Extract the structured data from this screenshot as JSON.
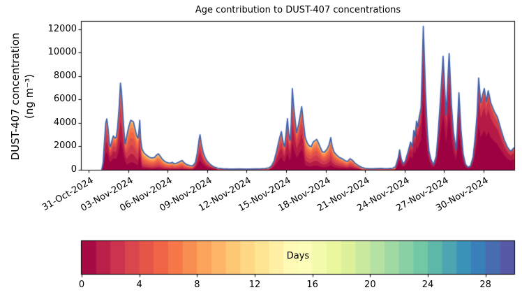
{
  "chart_data": {
    "type": "area",
    "title": "Age contribution to DUST-407 concentrations",
    "ylabel_line1": "DUST-407 concentration",
    "ylabel_line2": "(ng m⁻³)",
    "background_color": "#ffffff",
    "axis_color": "#000000",
    "line_color": "#4062aa",
    "ylim": [
      0,
      12650
    ],
    "xlim_days": [
      -0.53,
      32.33
    ],
    "y_ticks": [
      0,
      2000,
      4000,
      6000,
      8000,
      10000,
      12000
    ],
    "x_tick_labels": [
      "31-Oct-2024",
      "03-Nov-2024",
      "06-Nov-2024",
      "09-Nov-2024",
      "12-Nov-2024",
      "15-Nov-2024",
      "18-Nov-2024",
      "21-Nov-2024",
      "24-Nov-2024",
      "27-Nov-2024",
      "30-Nov-2024"
    ],
    "x_tick_days": [
      0,
      3,
      6,
      9,
      12,
      15,
      18,
      21,
      24,
      27,
      30
    ],
    "grid": false,
    "x_days": [
      1.0,
      1.1,
      1.2,
      1.3,
      1.38,
      1.48,
      1.58,
      1.66,
      1.78,
      1.88,
      2.0,
      2.1,
      2.2,
      2.32,
      2.42,
      2.5,
      2.6,
      2.7,
      2.78,
      2.9,
      3.05,
      3.2,
      3.4,
      3.55,
      3.65,
      3.75,
      3.82,
      3.88,
      3.95,
      4.05,
      4.2,
      4.4,
      4.6,
      4.8,
      5.0,
      5.15,
      5.3,
      5.45,
      5.6,
      5.8,
      6.0,
      6.2,
      6.35,
      6.5,
      6.7,
      6.9,
      7.1,
      7.3,
      7.5,
      7.7,
      7.9,
      8.1,
      8.25,
      8.38,
      8.46,
      8.55,
      8.7,
      8.85,
      9.0,
      9.2,
      9.4,
      9.6,
      9.8,
      10.2,
      10.6,
      11.0,
      11.4,
      11.8,
      12.2,
      12.6,
      13.0,
      13.4,
      13.7,
      13.9,
      14.1,
      14.3,
      14.5,
      14.64,
      14.78,
      14.88,
      15.0,
      15.1,
      15.2,
      15.3,
      15.38,
      15.47,
      15.56,
      15.68,
      15.79,
      15.95,
      16.08,
      16.18,
      16.3,
      16.45,
      16.6,
      16.75,
      16.9,
      17.05,
      17.2,
      17.32,
      17.45,
      17.6,
      17.75,
      17.9,
      18.1,
      18.25,
      18.39,
      18.5,
      18.65,
      18.85,
      19.05,
      19.25,
      19.45,
      19.65,
      19.85,
      20.05,
      20.25,
      20.5,
      20.75,
      21.0,
      21.3,
      21.6,
      21.9,
      22.2,
      22.5,
      22.8,
      23.1,
      23.3,
      23.5,
      23.62,
      23.75,
      23.9,
      24.05,
      24.25,
      24.45,
      24.58,
      24.7,
      24.8,
      24.9,
      25.0,
      25.1,
      25.25,
      25.42,
      25.58,
      25.72,
      25.85,
      26.0,
      26.2,
      26.4,
      26.55,
      26.72,
      26.92,
      27.15,
      27.38,
      27.55,
      27.7,
      27.9,
      28.0,
      28.12,
      28.28,
      28.45,
      28.62,
      28.8,
      29.0,
      29.2,
      29.35,
      29.5,
      29.62,
      29.78,
      29.92,
      30.05,
      30.2,
      30.35,
      30.55,
      30.8,
      31.05,
      31.3,
      31.55,
      31.8,
      32.05,
      32.3
    ],
    "total": [
      30,
      600,
      2400,
      4000,
      4350,
      3500,
      2200,
      1970,
      2550,
      2900,
      2700,
      2800,
      3600,
      5400,
      7400,
      6600,
      4700,
      3100,
      2200,
      2900,
      3700,
      4230,
      4100,
      3400,
      2900,
      2700,
      3300,
      4230,
      2600,
      1800,
      1450,
      1250,
      1080,
      1000,
      1050,
      1250,
      1370,
      1150,
      900,
      700,
      600,
      560,
      640,
      520,
      580,
      680,
      800,
      560,
      420,
      360,
      340,
      600,
      1400,
      2500,
      2985,
      2300,
      1500,
      1050,
      750,
      500,
      330,
      210,
      140,
      95,
      75,
      70,
      80,
      65,
      70,
      75,
      85,
      110,
      170,
      350,
      800,
      1700,
      2700,
      3265,
      2300,
      1970,
      3200,
      4360,
      3000,
      2500,
      3800,
      6940,
      5600,
      4300,
      3164,
      3900,
      4700,
      5390,
      4200,
      2764,
      2300,
      2050,
      1970,
      2370,
      2500,
      2600,
      2300,
      1900,
      1550,
      1500,
      1750,
      2100,
      2750,
      2000,
      1500,
      1250,
      1050,
      950,
      800,
      700,
      950,
      800,
      550,
      350,
      200,
      130,
      95,
      90,
      110,
      130,
      95,
      105,
      140,
      250,
      950,
      1700,
      900,
      480,
      750,
      1500,
      2370,
      1950,
      3360,
      2850,
      4160,
      3650,
      4460,
      5300,
      12250,
      6800,
      3300,
      1600,
      880,
      420,
      1200,
      3200,
      6000,
      9700,
      4650,
      9930,
      5600,
      3300,
      1700,
      3400,
      6590,
      3400,
      1300,
      480,
      220,
      320,
      1100,
      2700,
      4700,
      7840,
      5700,
      6400,
      6940,
      5800,
      6750,
      5700,
      5000,
      4500,
      3500,
      2600,
      1950,
      1570,
      1870
    ],
    "age_bins": [
      {
        "label": "0-1",
        "color": "#9e0142"
      },
      {
        "label": "1-2",
        "color": "#b51a47"
      },
      {
        "label": "2-3",
        "color": "#d0384d"
      },
      {
        "label": "3-4",
        "color": "#e04f4a"
      },
      {
        "label": "4-5",
        "color": "#ee6445"
      },
      {
        "label": "5-6",
        "color": "#f67a49"
      },
      {
        "label": "6-7",
        "color": "#fa9656"
      },
      {
        "label": "7-8",
        "color": "#fdae61"
      },
      {
        "label": "8-9",
        "color": "#fdc877"
      },
      {
        "label": "9-10",
        "color": "#fee08b"
      },
      {
        "label": "10-12",
        "color": "#f8fcb4"
      },
      {
        "label": "12-30",
        "color": "#cdeb9d"
      }
    ],
    "age_mix_segments": [
      {
        "from": 0.9,
        "to": 2.85,
        "fractions": [
          0.34,
          0.22,
          0.15,
          0.1,
          0.07,
          0.05,
          0.03,
          0.02,
          0.01,
          0.005,
          0.003,
          0.002
        ]
      },
      {
        "from": 2.85,
        "to": 3.78,
        "fractions": [
          0.15,
          0.17,
          0.18,
          0.15,
          0.12,
          0.09,
          0.06,
          0.04,
          0.02,
          0.01,
          0.005,
          0.005
        ]
      },
      {
        "from": 3.78,
        "to": 4.0,
        "fractions": [
          0.28,
          0.2,
          0.16,
          0.12,
          0.08,
          0.06,
          0.04,
          0.03,
          0.015,
          0.01,
          0.003,
          0.002
        ]
      },
      {
        "from": 4.0,
        "to": 8.05,
        "fractions": [
          0.08,
          0.11,
          0.14,
          0.15,
          0.14,
          0.12,
          0.09,
          0.07,
          0.05,
          0.03,
          0.015,
          0.005
        ]
      },
      {
        "from": 8.05,
        "to": 9.7,
        "fractions": [
          0.28,
          0.22,
          0.17,
          0.11,
          0.08,
          0.05,
          0.035,
          0.025,
          0.015,
          0.01,
          0.005,
          0.005
        ]
      },
      {
        "from": 9.7,
        "to": 13.75,
        "fractions": [
          0.04,
          0.06,
          0.08,
          0.1,
          0.12,
          0.12,
          0.11,
          0.1,
          0.09,
          0.08,
          0.1,
          0.1
        ]
      },
      {
        "from": 13.75,
        "to": 16.35,
        "fractions": [
          0.33,
          0.24,
          0.16,
          0.1,
          0.06,
          0.04,
          0.025,
          0.015,
          0.01,
          0.005,
          0.005,
          0.01
        ]
      },
      {
        "from": 16.35,
        "to": 20.6,
        "fractions": [
          0.14,
          0.16,
          0.17,
          0.15,
          0.12,
          0.09,
          0.07,
          0.05,
          0.025,
          0.015,
          0.005,
          0.005
        ]
      },
      {
        "from": 20.6,
        "to": 23.35,
        "fractions": [
          0.04,
          0.06,
          0.08,
          0.1,
          0.12,
          0.12,
          0.11,
          0.1,
          0.09,
          0.08,
          0.1,
          0.1
        ]
      },
      {
        "from": 23.35,
        "to": 32.4,
        "fractions": [
          0.48,
          0.28,
          0.13,
          0.05,
          0.02,
          0.012,
          0.008,
          0.006,
          0.002,
          0.001,
          0.0005,
          0.0005
        ]
      }
    ],
    "colorbar": {
      "label": "Days",
      "ticks": [
        0,
        4,
        8,
        12,
        16,
        20,
        24,
        28
      ],
      "range": [
        0,
        30
      ],
      "segments": 30,
      "anchors": [
        "#9e0142",
        "#d53e4f",
        "#f46d43",
        "#fdae61",
        "#fee08b",
        "#ffffbf",
        "#e6f598",
        "#abdda4",
        "#66c2a5",
        "#3288bd",
        "#5e4fa2"
      ]
    }
  }
}
